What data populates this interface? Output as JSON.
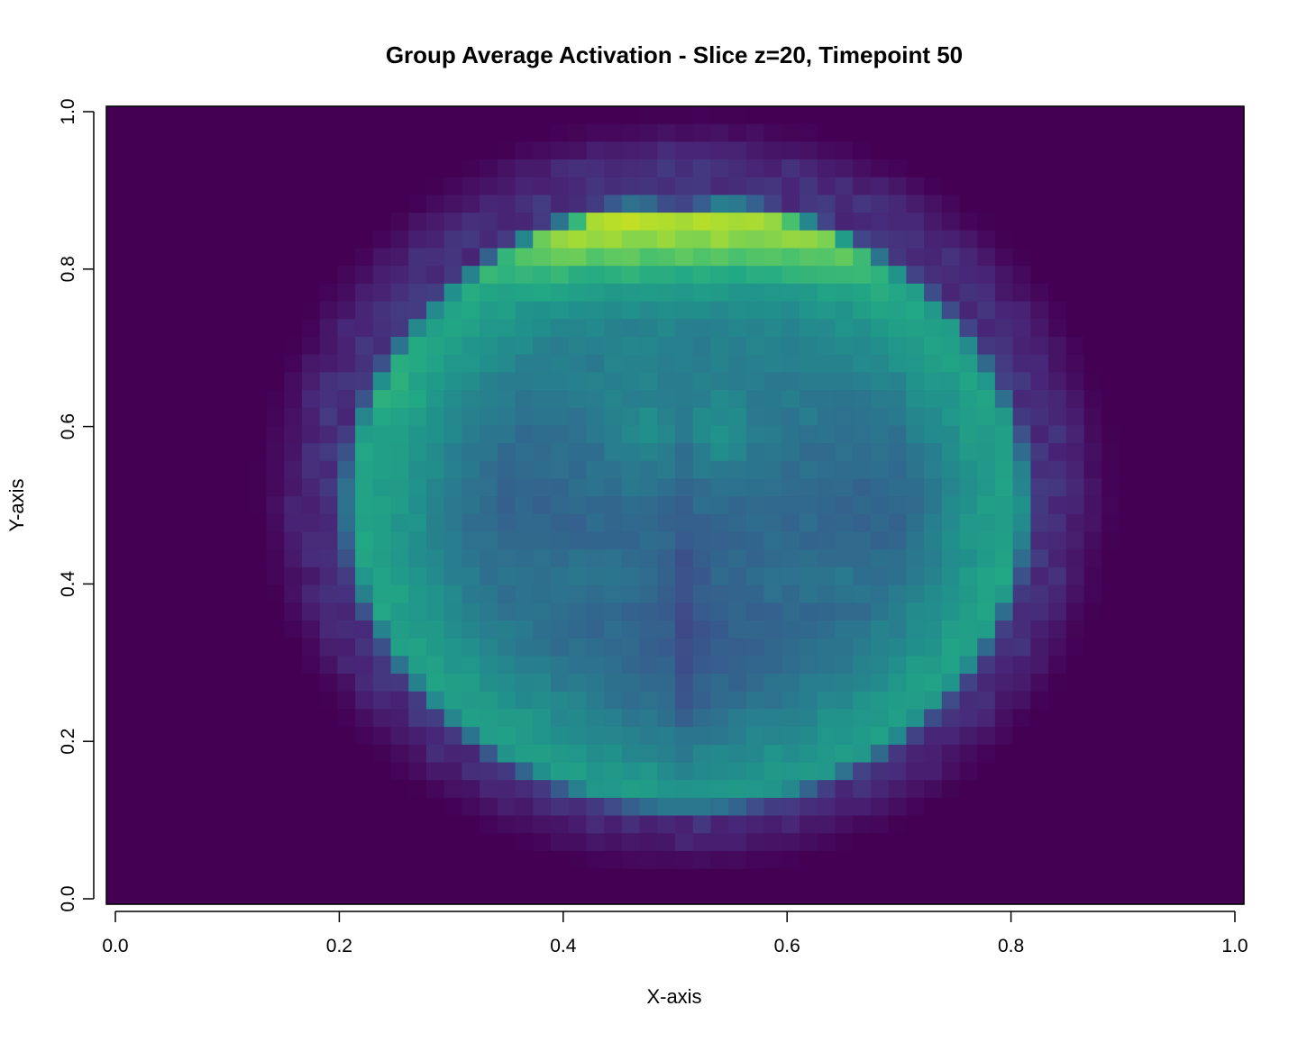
{
  "chart_data": {
    "type": "heatmap",
    "title": "Group Average Activation - Slice z=20, Timepoint 50",
    "xlabel": "X-axis",
    "ylabel": "Y-axis",
    "xlim": [
      0,
      1
    ],
    "ylim": [
      0,
      1
    ],
    "x_ticks": [
      0.0,
      0.2,
      0.4,
      0.6,
      0.8,
      1.0
    ],
    "x_tick_labels": [
      "0.0",
      "0.2",
      "0.4",
      "0.6",
      "0.8",
      "1.0"
    ],
    "y_ticks": [
      0.0,
      0.2,
      0.4,
      0.6,
      0.8,
      1.0
    ],
    "y_tick_labels": [
      "0.0",
      "0.2",
      "0.4",
      "0.6",
      "0.8",
      "1.0"
    ],
    "grid": false,
    "legend": "none",
    "colormap": "viridis",
    "color_low": "#440154",
    "color_high": "#fde725",
    "grid_size": [
      64,
      45
    ]
  }
}
